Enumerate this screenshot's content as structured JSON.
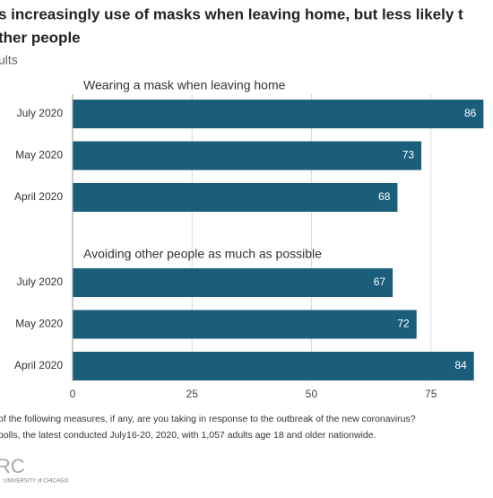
{
  "chart_data": {
    "type": "bar",
    "title_lines": [
      "s increasingly use of masks when leaving home, but less likely t",
      "ther people"
    ],
    "subtitle": "ults",
    "groups": [
      {
        "label": "Wearing a mask when leaving home",
        "categories": [
          "July 2020",
          "May 2020",
          "April 2020"
        ],
        "values": [
          86,
          73,
          68
        ]
      },
      {
        "label": "Avoiding other people as much as possible",
        "categories": [
          "July 2020",
          "May 2020",
          "April 2020"
        ],
        "values": [
          67,
          72,
          84
        ]
      }
    ],
    "color": "#1b5e7b",
    "xlim": [
      0,
      88
    ],
    "xticks": [
      0,
      25,
      50,
      75
    ],
    "grid": true,
    "footnotes": [
      "of the following measures, if any, are you taking in response to the outbreak of the new coronavirus?",
      "polls, the latest conducted July16-20, 2020, with 1,057 adults age 18 and older nationwide."
    ],
    "logo": "RC",
    "logo_sub": "UNIVERSITY of CHICAGO"
  }
}
